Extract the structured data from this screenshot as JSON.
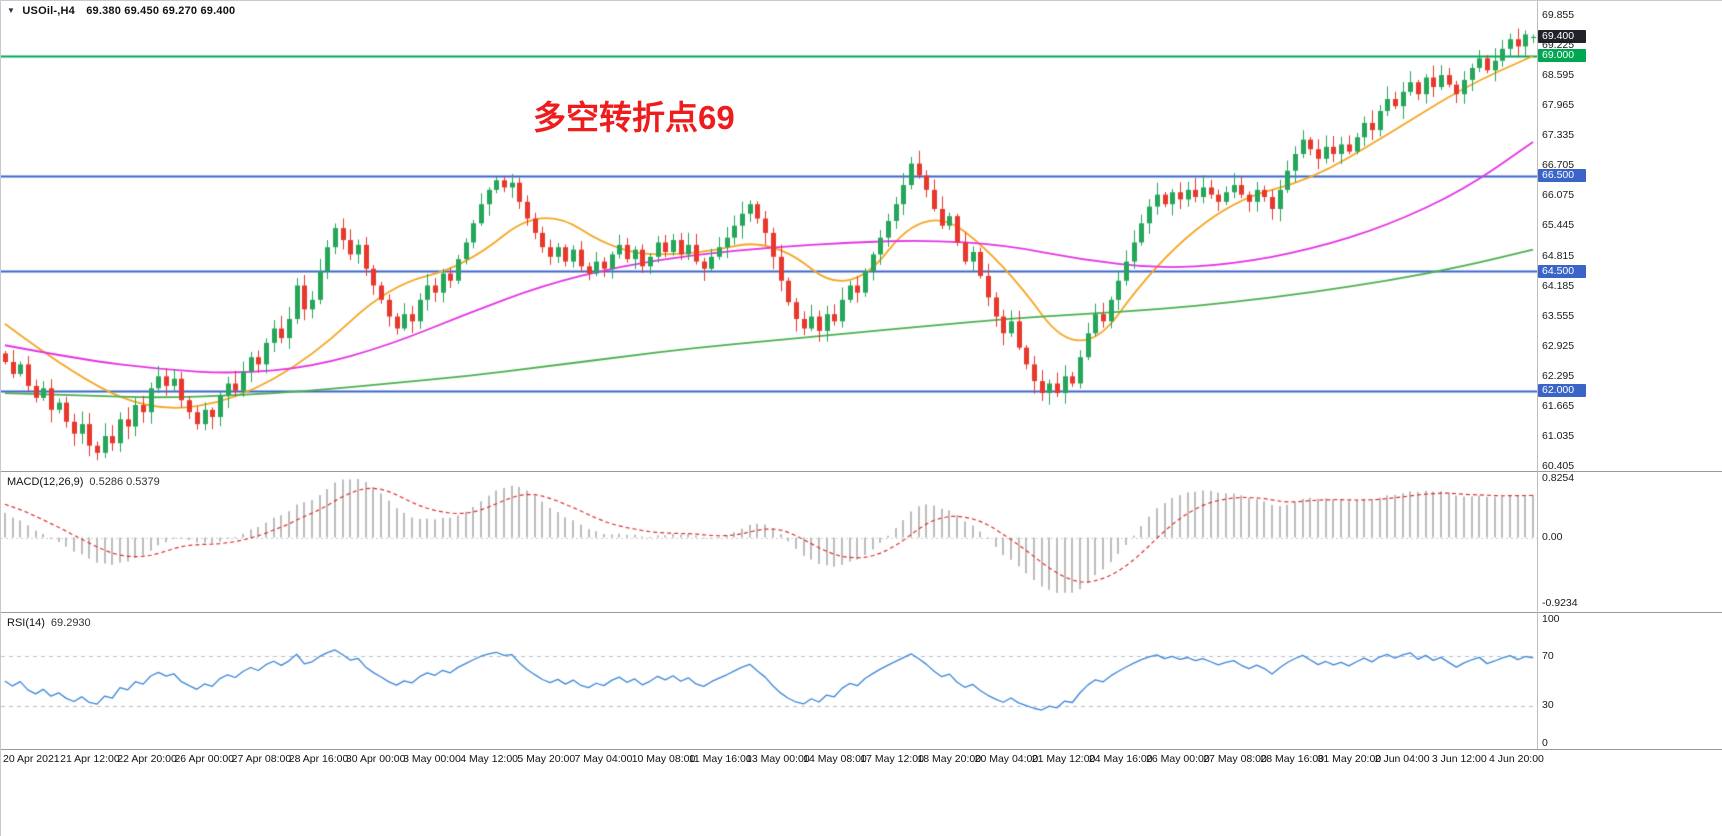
{
  "header": {
    "dropdown_icon": "▼",
    "symbol": "USOil-,H4",
    "ohlc": "69.380 69.450 69.270 69.400"
  },
  "annotation": {
    "text": "多空转折点69",
    "color": "#ee1c1c"
  },
  "colors": {
    "bull": "#26a65b",
    "bear": "#e8382c",
    "ma_fast": "#f5a623",
    "ma_mid": "#e434e4",
    "ma_slow": "#4caf50",
    "level_green": "#00a651",
    "level_blue": "#3b64c8",
    "price_badge_bg": "#20232a",
    "macd_hist": "#bdbdbd",
    "macd_signal": "#dd3333",
    "rsi_line": "#3c86d8",
    "rsi_level": "#b9c2c9",
    "axis_text": "#1a1a1a"
  },
  "chart_data": {
    "type": "candlestick",
    "symbol": "USOil",
    "timeframe": "H4",
    "current_bar": {
      "open": 69.38,
      "high": 69.45,
      "low": 69.27,
      "close": 69.4
    },
    "ylim": [
      60.32,
      70.15
    ],
    "closes": [
      62.6,
      62.35,
      62.55,
      62.1,
      61.85,
      62.05,
      61.6,
      61.75,
      61.35,
      61.1,
      61.3,
      60.85,
      60.7,
      61.05,
      60.9,
      61.4,
      61.25,
      61.7,
      61.55,
      62.05,
      62.3,
      62.1,
      62.25,
      61.8,
      61.55,
      61.3,
      61.6,
      61.45,
      61.9,
      62.15,
      62.0,
      62.4,
      62.7,
      62.55,
      63.0,
      63.3,
      63.1,
      63.5,
      64.2,
      63.7,
      63.9,
      64.5,
      65.0,
      65.4,
      65.15,
      64.85,
      65.05,
      64.55,
      64.2,
      63.9,
      63.55,
      63.3,
      63.6,
      63.45,
      63.9,
      64.2,
      64.05,
      64.45,
      64.3,
      64.75,
      65.1,
      65.5,
      65.9,
      66.2,
      66.4,
      66.25,
      66.35,
      65.95,
      65.6,
      65.3,
      65.0,
      64.8,
      65.0,
      64.7,
      64.95,
      64.6,
      64.45,
      64.7,
      64.55,
      64.85,
      65.05,
      64.75,
      64.95,
      64.6,
      64.8,
      65.1,
      64.9,
      65.15,
      64.85,
      65.05,
      64.7,
      64.55,
      64.8,
      65.0,
      65.2,
      65.45,
      65.7,
      65.9,
      65.6,
      65.3,
      64.8,
      64.3,
      63.85,
      63.5,
      63.3,
      63.55,
      63.25,
      63.6,
      63.45,
      63.9,
      64.2,
      64.05,
      64.5,
      64.85,
      65.2,
      65.55,
      65.9,
      66.3,
      66.75,
      66.5,
      66.2,
      65.8,
      65.45,
      65.65,
      65.1,
      64.7,
      64.9,
      64.4,
      63.95,
      63.55,
      63.2,
      63.45,
      62.9,
      62.55,
      62.2,
      61.95,
      62.15,
      61.95,
      62.3,
      62.15,
      62.7,
      63.2,
      63.6,
      63.45,
      63.9,
      64.3,
      64.7,
      65.1,
      65.5,
      65.85,
      66.1,
      65.9,
      66.15,
      66.0,
      66.2,
      66.05,
      66.25,
      66.1,
      65.95,
      66.15,
      66.3,
      66.1,
      65.95,
      66.2,
      66.05,
      65.8,
      66.2,
      66.6,
      66.95,
      67.25,
      67.05,
      66.85,
      67.1,
      66.95,
      67.15,
      67.0,
      67.3,
      67.6,
      67.45,
      67.85,
      68.1,
      67.95,
      68.25,
      68.45,
      68.2,
      68.55,
      68.35,
      68.6,
      68.4,
      68.2,
      68.5,
      68.75,
      68.95,
      68.7,
      68.9,
      69.15,
      69.35,
      69.2,
      69.45,
      69.4
    ],
    "levels": [
      {
        "price": 69.0,
        "color": "green"
      },
      {
        "price": 66.5,
        "color": "blue"
      },
      {
        "price": 64.5,
        "color": "blue"
      },
      {
        "price": 62.0,
        "color": "blue"
      }
    ],
    "moving_averages": [
      {
        "name": "ma-fast-orange",
        "sample_step": 10,
        "values": [
          63.4,
          62.2,
          61.55,
          61.8,
          62.7,
          64.2,
          64.6,
          65.9,
          64.85,
          64.85,
          65.2,
          63.9,
          65.95,
          64.7,
          62.5,
          64.7,
          66.0,
          66.4,
          67.35,
          68.35,
          69.0
        ]
      },
      {
        "name": "ma-mid-magenta",
        "sample_step": 10,
        "values": [
          62.95,
          62.65,
          62.45,
          62.35,
          62.5,
          62.95,
          63.6,
          64.2,
          64.6,
          64.85,
          65.0,
          65.1,
          65.15,
          65.05,
          64.75,
          64.55,
          64.65,
          64.95,
          65.45,
          66.2,
          67.2
        ]
      },
      {
        "name": "ma-slow-green",
        "sample_step": 10,
        "values": [
          61.95,
          61.9,
          61.85,
          61.9,
          62.0,
          62.15,
          62.3,
          62.5,
          62.7,
          62.9,
          63.05,
          63.2,
          63.35,
          63.5,
          63.6,
          63.7,
          63.85,
          64.05,
          64.3,
          64.6,
          64.95
        ]
      }
    ],
    "y_axis_labels": [
      {
        "text": "69.855",
        "value": 69.855
      },
      {
        "text": "69.400",
        "value": 69.4,
        "badge": "price"
      },
      {
        "text": "69.225",
        "value": 69.225
      },
      {
        "text": "69.000",
        "value": 69.0,
        "badge": "green"
      },
      {
        "text": "68.595",
        "value": 68.595
      },
      {
        "text": "67.965",
        "value": 67.965
      },
      {
        "text": "67.335",
        "value": 67.335
      },
      {
        "text": "66.705",
        "value": 66.705
      },
      {
        "text": "66.500",
        "value": 66.5,
        "badge": "blue"
      },
      {
        "text": "66.075",
        "value": 66.075
      },
      {
        "text": "65.445",
        "value": 65.445
      },
      {
        "text": "64.815",
        "value": 64.815
      },
      {
        "text": "64.500",
        "value": 64.5,
        "badge": "blue"
      },
      {
        "text": "64.185",
        "value": 64.185
      },
      {
        "text": "63.555",
        "value": 63.555
      },
      {
        "text": "62.925",
        "value": 62.925
      },
      {
        "text": "62.295",
        "value": 62.295
      },
      {
        "text": "62.000",
        "value": 62.0,
        "badge": "blue"
      },
      {
        "text": "61.665",
        "value": 61.665
      },
      {
        "text": "61.035",
        "value": 61.035
      },
      {
        "text": "60.405",
        "value": 60.405
      }
    ],
    "x_labels": [
      "20 Apr 2021",
      "21 Apr 12:00",
      "22 Apr 20:00",
      "26 Apr 00:00",
      "27 Apr 08:00",
      "28 Apr 16:00",
      "30 Apr 00:00",
      "3 May 00:00",
      "4 May 12:00",
      "5 May 20:00",
      "7 May 04:00",
      "10 May 08:00",
      "11 May 16:00",
      "13 May 00:00",
      "14 May 08:00",
      "17 May 12:00",
      "18 May 20:00",
      "20 May 04:00",
      "21 May 12:00",
      "24 May 16:00",
      "26 May 00:00",
      "27 May 08:00",
      "28 May 16:00",
      "31 May 20:00",
      "2 Jun 04:00",
      "3 Jun 12:00",
      "4 Jun 20:00"
    ],
    "macd": {
      "label": "MACD(12,26,9)",
      "values_text": "0.5286 0.5379",
      "fast": 12,
      "slow": 26,
      "signal": 9,
      "ylim": [
        -1.05,
        0.924
      ],
      "axis_labels": [
        {
          "text": "0.8254",
          "value": 0.8254
        },
        {
          "text": "0.00",
          "value": 0
        },
        {
          "text": "-0.9234",
          "value": -0.9234
        }
      ]
    },
    "rsi": {
      "label": "RSI(14)",
      "value_text": "69.2930",
      "period": 14,
      "levels": [
        70,
        30
      ],
      "axis_labels": [
        {
          "text": "100",
          "value": 100
        },
        {
          "text": "70",
          "value": 70
        },
        {
          "text": "30",
          "value": 30
        },
        {
          "text": "0",
          "value": 0
        }
      ]
    }
  }
}
